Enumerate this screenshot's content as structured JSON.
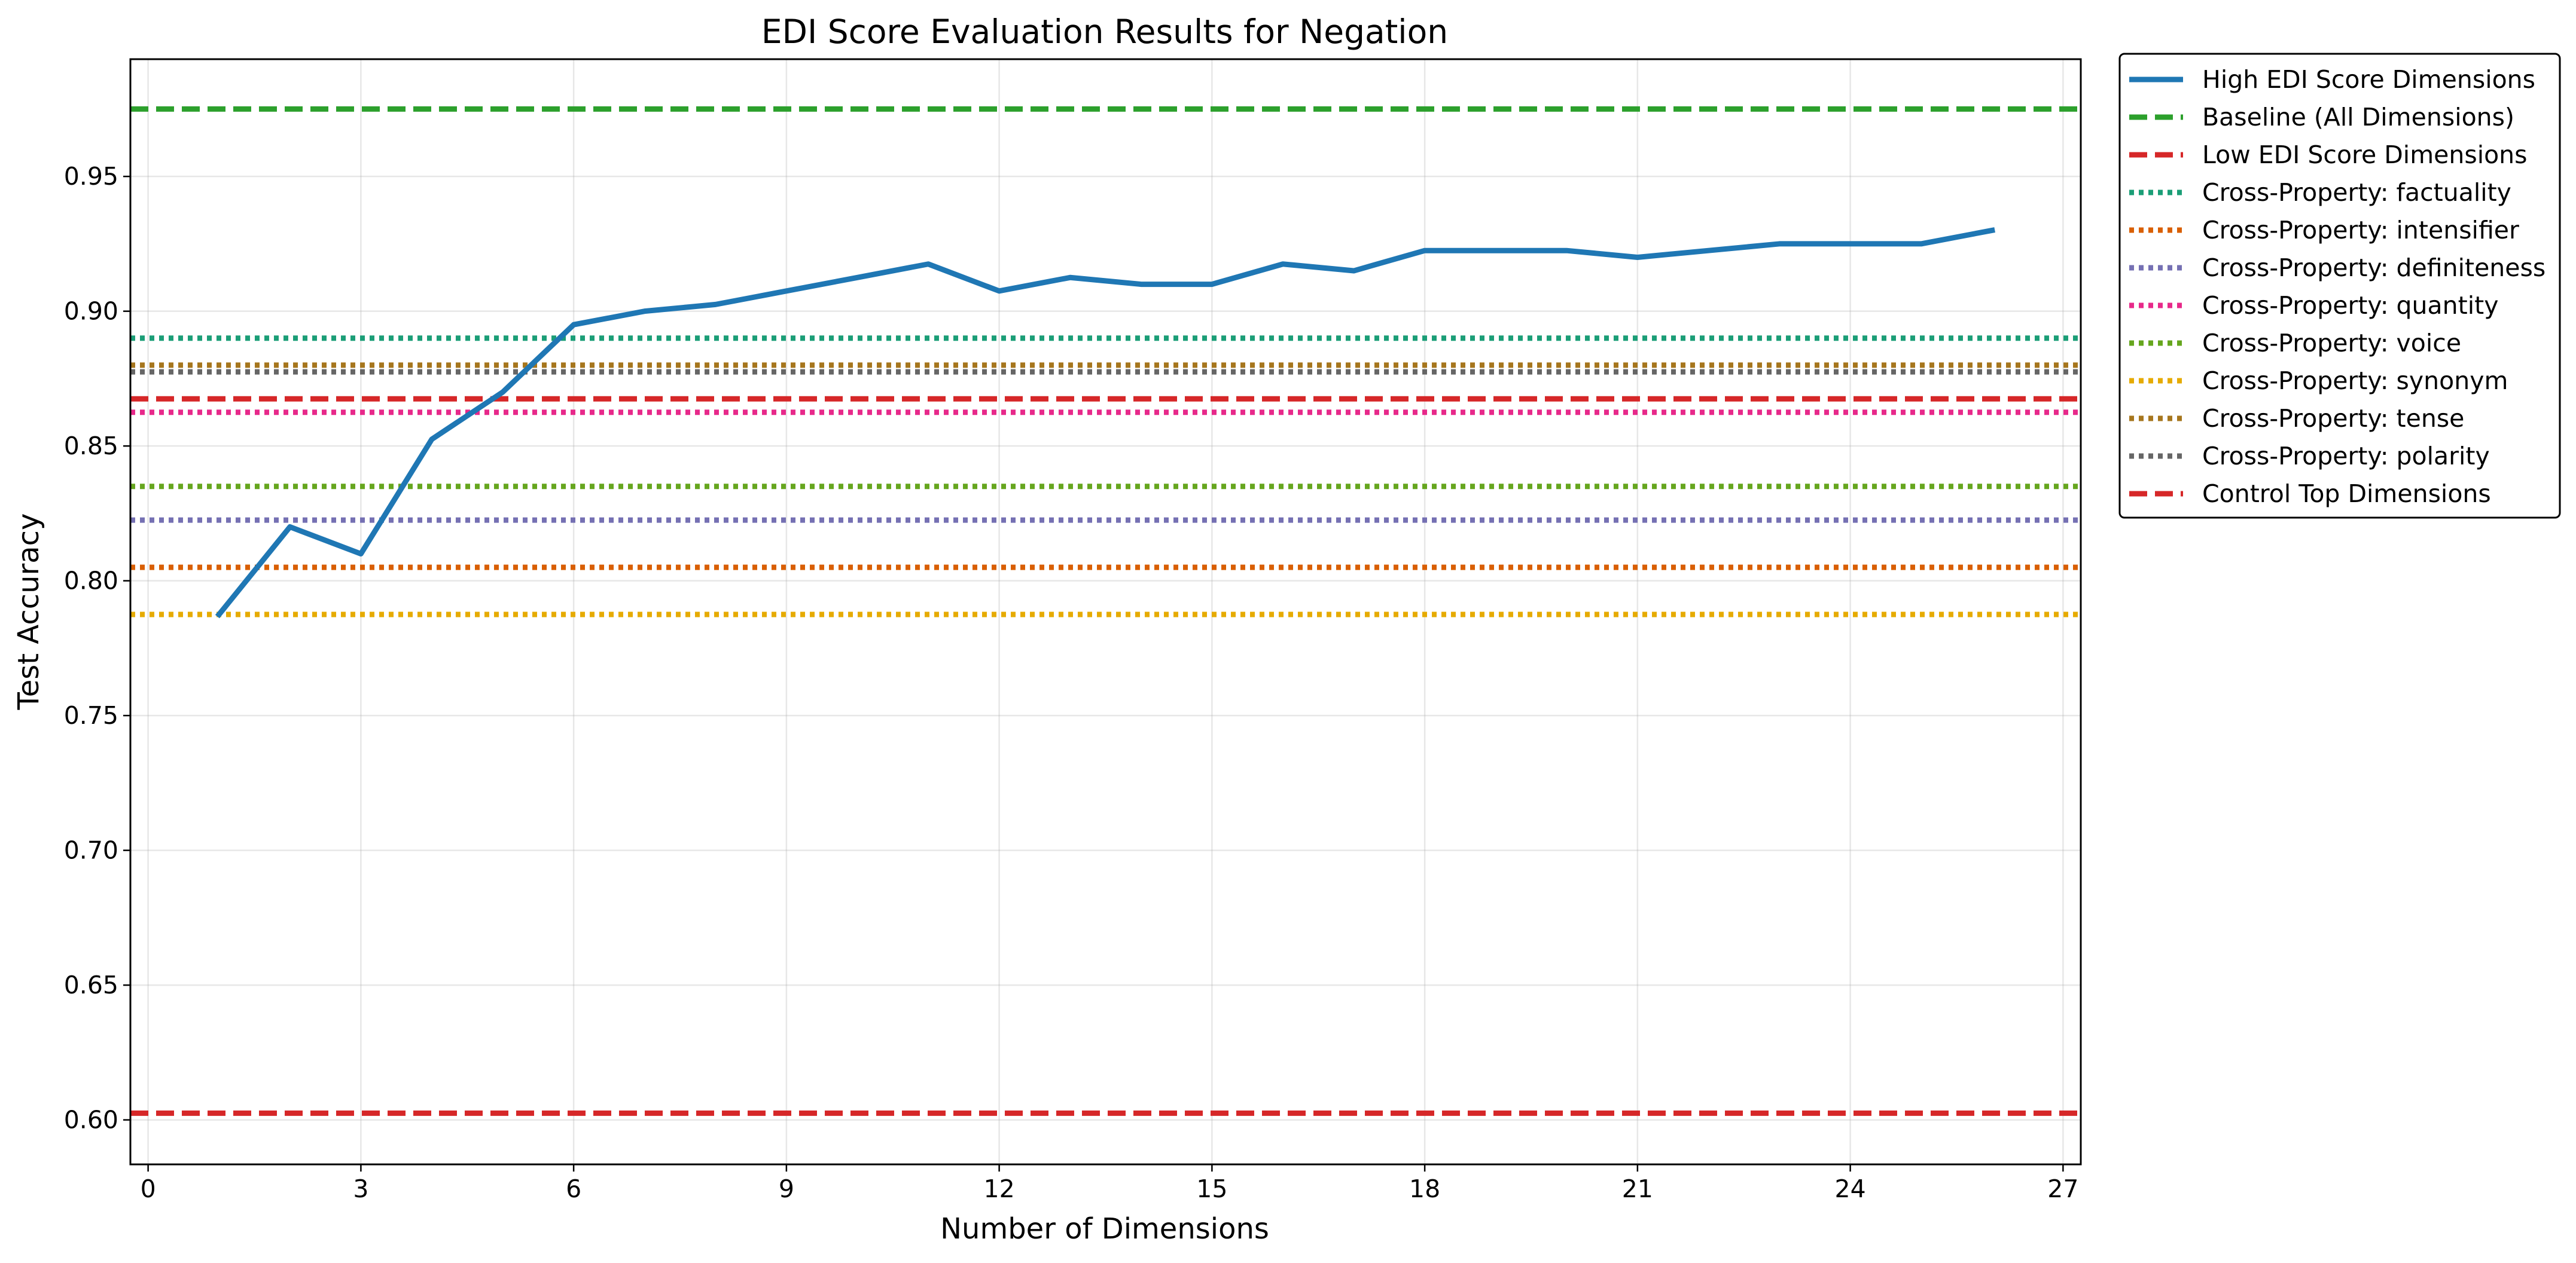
{
  "chart_data": {
    "type": "line",
    "title": "EDI Score Evaluation Results for Negation",
    "xlabel": "Number of Dimensions",
    "ylabel": "Test Accuracy",
    "xlim": [
      -0.25,
      27.25
    ],
    "ylim": [
      0.5835,
      0.9935
    ],
    "xticks": [
      0,
      3,
      6,
      9,
      12,
      15,
      18,
      21,
      24,
      27
    ],
    "yticks": [
      0.6,
      0.65,
      0.7,
      0.75,
      0.8,
      0.85,
      0.9,
      0.95
    ],
    "ytick_labels": [
      "0.60",
      "0.65",
      "0.70",
      "0.75",
      "0.80",
      "0.85",
      "0.90",
      "0.95"
    ],
    "grid": true,
    "legend_position": "outside upper right",
    "series": [
      {
        "name": "High EDI Score Dimensions",
        "kind": "line",
        "style": "solid",
        "color": "#1f77b4",
        "x": [
          1,
          2,
          3,
          4,
          5,
          6,
          7,
          8,
          9,
          10,
          11,
          12,
          13,
          14,
          15,
          16,
          17,
          18,
          19,
          20,
          21,
          22,
          23,
          24,
          25,
          26
        ],
        "y": [
          0.7875,
          0.82,
          0.81,
          0.8525,
          0.87,
          0.895,
          0.9,
          0.9025,
          0.9075,
          0.9125,
          0.9175,
          0.9075,
          0.9125,
          0.91,
          0.91,
          0.9175,
          0.915,
          0.9225,
          0.9225,
          0.9225,
          0.92,
          0.9225,
          0.925,
          0.925,
          0.925,
          0.93
        ]
      },
      {
        "name": "Baseline (All Dimensions)",
        "kind": "hline",
        "style": "dashed",
        "color": "#2ca02c",
        "y": 0.975
      },
      {
        "name": "Low EDI Score Dimensions",
        "kind": "hline",
        "style": "dashed",
        "color": "#d62728",
        "y": 0.6025
      },
      {
        "name": "Cross-Property: factuality",
        "kind": "hline",
        "style": "dotted",
        "color": "#1b9e77",
        "y": 0.89
      },
      {
        "name": "Cross-Property: intensifier",
        "kind": "hline",
        "style": "dotted",
        "color": "#d95f02",
        "y": 0.805
      },
      {
        "name": "Cross-Property: definiteness",
        "kind": "hline",
        "style": "dotted",
        "color": "#7570b3",
        "y": 0.8225
      },
      {
        "name": "Cross-Property: quantity",
        "kind": "hline",
        "style": "dotted",
        "color": "#e7298a",
        "y": 0.8625
      },
      {
        "name": "Cross-Property: voice",
        "kind": "hline",
        "style": "dotted",
        "color": "#66a61e",
        "y": 0.835
      },
      {
        "name": "Cross-Property: synonym",
        "kind": "hline",
        "style": "dotted",
        "color": "#e6ab02",
        "y": 0.7875
      },
      {
        "name": "Cross-Property: tense",
        "kind": "hline",
        "style": "dotted",
        "color": "#a6761d",
        "y": 0.88
      },
      {
        "name": "Cross-Property: polarity",
        "kind": "hline",
        "style": "dotted",
        "color": "#666666",
        "y": 0.8775
      },
      {
        "name": "Control Top Dimensions",
        "kind": "hline",
        "style": "dashed",
        "color": "#d62728",
        "y": 0.8675
      }
    ]
  }
}
